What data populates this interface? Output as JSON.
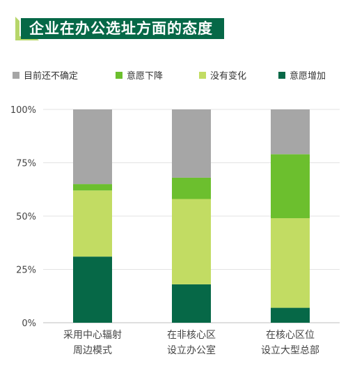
{
  "title": "企业在办公选址方面的态度",
  "colors": {
    "title_bg": "#066847",
    "undecided": "#a6a6a6",
    "decrease": "#6cbf2e",
    "no_change": "#c2dc63",
    "increase": "#066847"
  },
  "legend": [
    {
      "label": "目前还不确定",
      "color": "#a6a6a6"
    },
    {
      "label": "意愿下降",
      "color": "#6cbf2e"
    },
    {
      "label": "没有变化",
      "color": "#c2dc63"
    },
    {
      "label": "意愿增加",
      "color": "#066847"
    }
  ],
  "chart_data": {
    "type": "bar",
    "stacked": true,
    "categories": [
      [
        "采用中心辐射",
        "周边模式"
      ],
      [
        "在非核心区",
        "设立办公室"
      ],
      [
        "在核心区位",
        "设立大型总部"
      ]
    ],
    "series": [
      {
        "name": "意愿增加",
        "color": "#066847",
        "values": [
          31,
          18,
          7
        ]
      },
      {
        "name": "没有变化",
        "color": "#c2dc63",
        "values": [
          31,
          40,
          42
        ]
      },
      {
        "name": "意愿下降",
        "color": "#6cbf2e",
        "values": [
          3,
          10,
          30
        ]
      },
      {
        "name": "目前还不确定",
        "color": "#a6a6a6",
        "values": [
          35,
          32,
          21
        ]
      }
    ],
    "y_ticks": [
      "0%",
      "25%",
      "50%",
      "75%",
      "100%"
    ],
    "ylim": [
      0,
      100
    ],
    "grid": true,
    "legend_position": "top"
  }
}
